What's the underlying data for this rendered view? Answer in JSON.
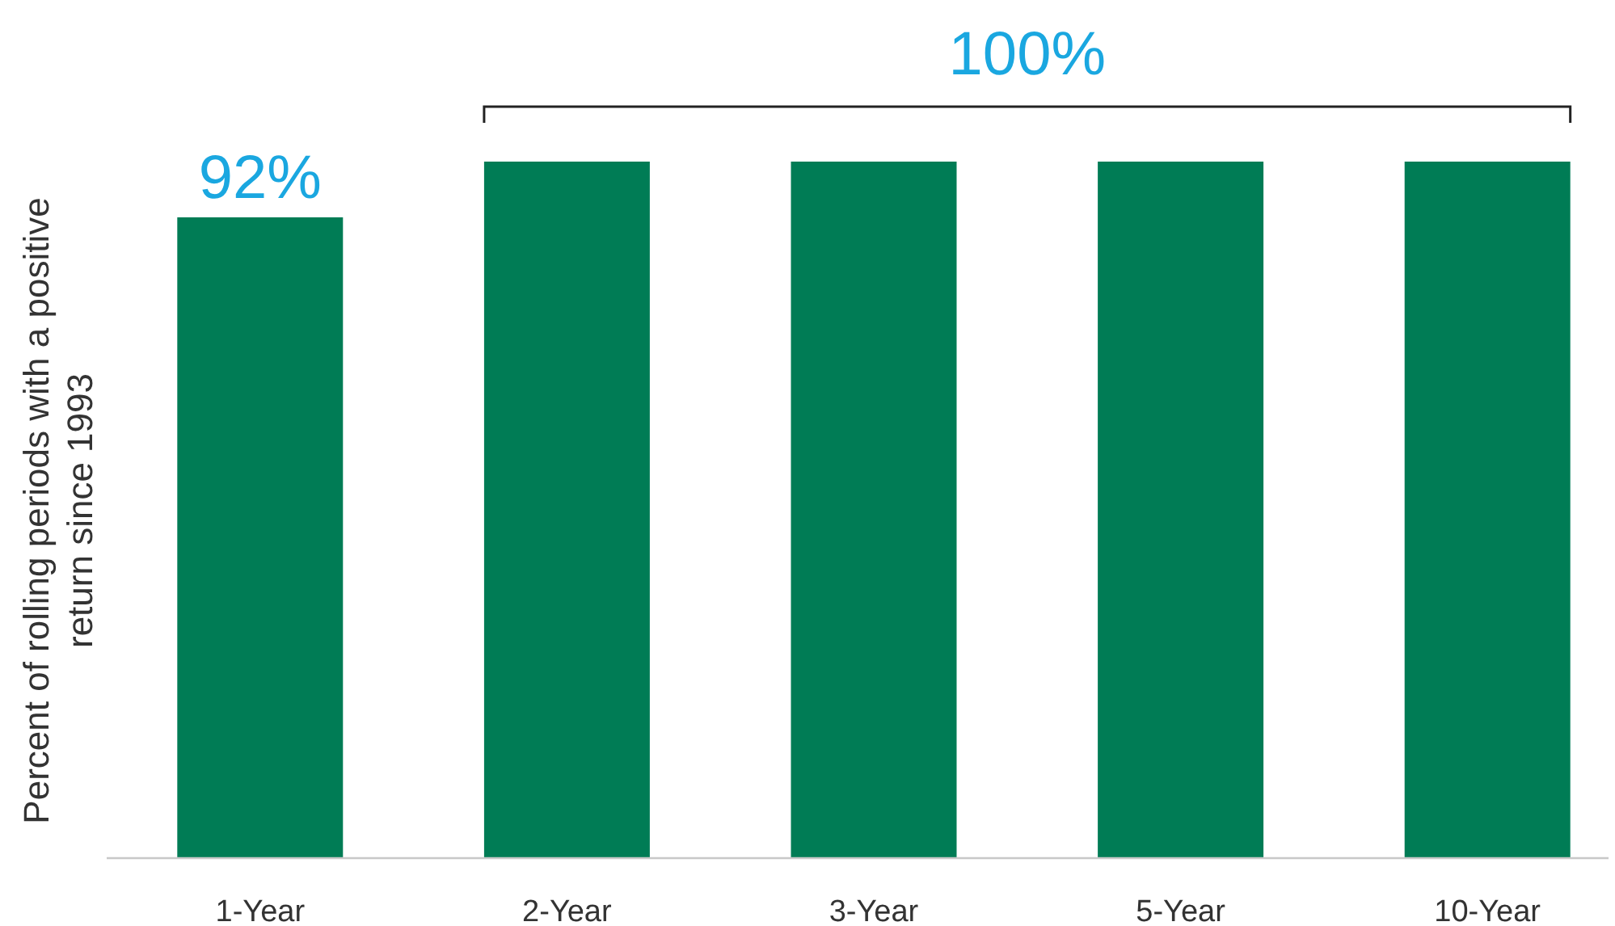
{
  "chart_data": {
    "type": "bar",
    "ylabel": "Percent of rolling periods with a positive return since 1993",
    "categories": [
      "1-Year",
      "2-Year",
      "3-Year",
      "5-Year",
      "10-Year"
    ],
    "values": [
      92,
      100,
      100,
      100,
      100
    ],
    "value_labels": [
      "92%",
      null,
      null,
      null,
      null
    ],
    "color": "#007c55",
    "ylim": [
      0,
      100
    ],
    "tick_labels": "x",
    "annotations": [
      "100%"
    ]
  }
}
